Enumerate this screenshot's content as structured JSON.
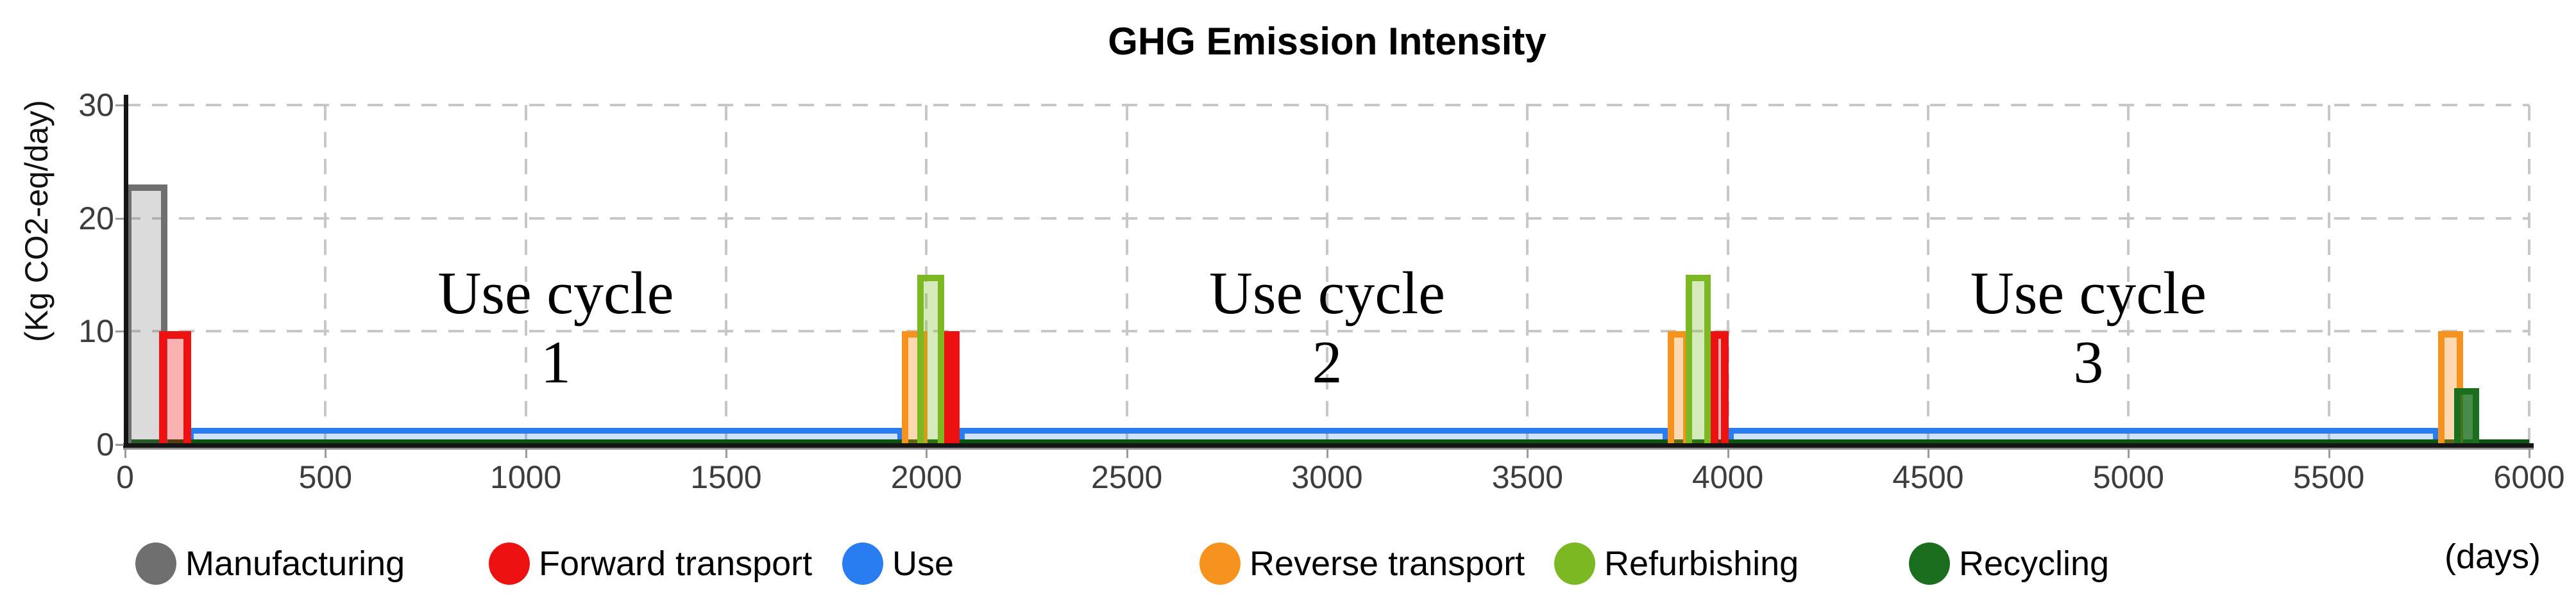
{
  "chart_data": {
    "type": "bar",
    "title": "GHG Emission Intensity",
    "ylabel": "(Kg CO2-eq/day)",
    "xlabel": "(days)",
    "xlim": [
      0,
      6000
    ],
    "ylim": [
      0,
      30
    ],
    "x_ticks": [
      0,
      500,
      1000,
      1500,
      2000,
      2500,
      3000,
      3500,
      4000,
      4500,
      5000,
      5500,
      6000
    ],
    "y_ticks": [
      0,
      10,
      20,
      30
    ],
    "grid": "dashed",
    "legend_position": "bottom",
    "annotations": [
      {
        "lines": [
          "Use cycle",
          "1"
        ],
        "x": 1075,
        "y": 10.3
      },
      {
        "lines": [
          "Use cycle",
          "2"
        ],
        "x": 3000,
        "y": 10.3
      },
      {
        "lines": [
          "Use cycle",
          "3"
        ],
        "x": 4900,
        "y": 10.3
      }
    ],
    "series": [
      {
        "name": "Manufacturing",
        "color": "#6f6f6f",
        "fill": "rgba(110,110,110,0.25)",
        "segments": [
          {
            "start": 0,
            "end": 105,
            "value": 23
          }
        ]
      },
      {
        "name": "Forward transport",
        "color": "#ee1111",
        "fill": "rgba(238,17,17,0.33)",
        "segments": [
          {
            "start": 85,
            "end": 165,
            "value": 10
          },
          {
            "start": 2045,
            "end": 2082,
            "value": 10
          },
          {
            "start": 3958,
            "end": 4002,
            "value": 10
          }
        ]
      },
      {
        "name": "Use",
        "color": "#2a7df0",
        "fill": "rgba(42,125,240,0.22)",
        "segments": [
          {
            "start": 158,
            "end": 1940,
            "value": 1.5
          },
          {
            "start": 2082,
            "end": 3850,
            "value": 1.5
          },
          {
            "start": 4002,
            "end": 5772,
            "value": 1.5
          }
        ]
      },
      {
        "name": "Reverse transport",
        "color": "#f6921e",
        "fill": "rgba(246,146,30,0.35)",
        "segments": [
          {
            "start": 1938,
            "end": 2002,
            "value": 10
          },
          {
            "start": 3850,
            "end": 3905,
            "value": 10
          },
          {
            "start": 5772,
            "end": 5835,
            "value": 10
          }
        ]
      },
      {
        "name": "Refurbishing",
        "color": "#7cb821",
        "fill": "rgba(124,184,33,0.30)",
        "segments": [
          {
            "start": 1977,
            "end": 2045,
            "value": 15
          },
          {
            "start": 3895,
            "end": 3958,
            "value": 15
          }
        ]
      },
      {
        "name": "Recycling",
        "color": "#1b6e1e",
        "fill": "rgba(27,110,30,0.80)",
        "segments": [
          {
            "start": 5812,
            "end": 5875,
            "value": 5
          }
        ],
        "baseline": {
          "start": 0,
          "end": 6000,
          "value": 0.35,
          "color": "#0d5412"
        }
      }
    ]
  }
}
